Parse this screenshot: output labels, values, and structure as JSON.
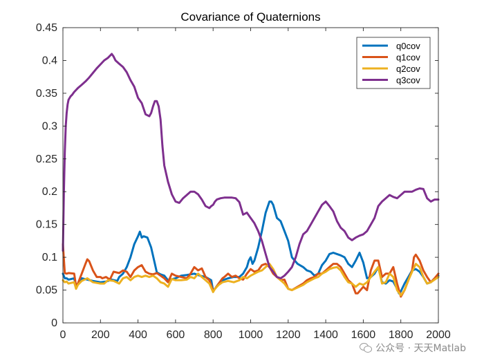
{
  "chart_data": {
    "type": "line",
    "title": "Covariance of Quaternions",
    "xlabel": "",
    "ylabel": "",
    "xlim": [
      0,
      2000
    ],
    "ylim": [
      0,
      0.45
    ],
    "xticks": [
      0,
      200,
      400,
      600,
      800,
      1000,
      1200,
      1400,
      1600,
      1800,
      2000
    ],
    "yticks": [
      0,
      0.05,
      0.1,
      0.15,
      0.2,
      0.25,
      0.3,
      0.35,
      0.4,
      0.45
    ],
    "xtick_labels": [
      "0",
      "200",
      "400",
      "600",
      "800",
      "1000",
      "1200",
      "1400",
      "1600",
      "1800",
      "2000"
    ],
    "ytick_labels": [
      "0",
      "0.05",
      "0.1",
      "0.15",
      "0.2",
      "0.25",
      "0.3",
      "0.35",
      "0.4",
      "0.45"
    ],
    "grid": false,
    "legend_position": "top-right",
    "series": [
      {
        "name": "q0cov",
        "color": "#0072BD",
        "x": [
          0,
          10,
          20,
          30,
          60,
          70,
          80,
          100,
          130,
          160,
          200,
          230,
          260,
          290,
          300,
          320,
          340,
          360,
          380,
          400,
          410,
          420,
          430,
          450,
          470,
          490,
          500,
          520,
          540,
          560,
          600,
          630,
          660,
          700,
          730,
          760,
          790,
          800,
          810,
          830,
          850,
          880,
          910,
          940,
          960,
          980,
          990,
          1000,
          1010,
          1020,
          1040,
          1060,
          1080,
          1100,
          1110,
          1120,
          1140,
          1160,
          1180,
          1200,
          1220,
          1250,
          1280,
          1300,
          1320,
          1340,
          1360,
          1380,
          1400,
          1420,
          1440,
          1460,
          1480,
          1500,
          1520,
          1540,
          1560,
          1580,
          1600,
          1620,
          1640,
          1660,
          1680,
          1700,
          1720,
          1740,
          1760,
          1780,
          1790,
          1800,
          1820,
          1840,
          1860,
          1880,
          1900,
          1920,
          1940,
          1960,
          1980,
          2000
        ],
        "y": [
          0.075,
          0.068,
          0.068,
          0.066,
          0.068,
          0.056,
          0.06,
          0.068,
          0.066,
          0.064,
          0.062,
          0.063,
          0.066,
          0.064,
          0.07,
          0.075,
          0.085,
          0.1,
          0.12,
          0.132,
          0.139,
          0.13,
          0.132,
          0.13,
          0.115,
          0.09,
          0.077,
          0.074,
          0.072,
          0.065,
          0.068,
          0.072,
          0.073,
          0.075,
          0.072,
          0.07,
          0.065,
          0.049,
          0.052,
          0.06,
          0.065,
          0.068,
          0.07,
          0.07,
          0.075,
          0.085,
          0.095,
          0.1,
          0.09,
          0.095,
          0.115,
          0.14,
          0.168,
          0.185,
          0.185,
          0.18,
          0.16,
          0.155,
          0.14,
          0.125,
          0.1,
          0.09,
          0.085,
          0.08,
          0.078,
          0.072,
          0.075,
          0.088,
          0.095,
          0.105,
          0.107,
          0.105,
          0.103,
          0.1,
          0.09,
          0.085,
          0.095,
          0.107,
          0.092,
          0.068,
          0.07,
          0.075,
          0.085,
          0.062,
          0.06,
          0.065,
          0.063,
          0.052,
          0.045,
          0.048,
          0.06,
          0.07,
          0.08,
          0.082,
          0.078,
          0.07,
          0.06,
          0.062,
          0.068,
          0.072
        ]
      },
      {
        "name": "q1cov",
        "color": "#D95319",
        "x": [
          0,
          10,
          20,
          30,
          60,
          70,
          80,
          100,
          120,
          130,
          140,
          160,
          180,
          200,
          210,
          230,
          250,
          270,
          300,
          320,
          340,
          360,
          380,
          400,
          420,
          430,
          440,
          460,
          480,
          500,
          520,
          540,
          560,
          580,
          600,
          630,
          660,
          680,
          700,
          720,
          740,
          760,
          780,
          800,
          810,
          830,
          850,
          860,
          880,
          900,
          920,
          940,
          960,
          980,
          1000,
          1020,
          1040,
          1060,
          1080,
          1100,
          1120,
          1140,
          1160,
          1180,
          1200,
          1220,
          1250,
          1280,
          1300,
          1320,
          1340,
          1360,
          1380,
          1400,
          1420,
          1440,
          1460,
          1480,
          1500,
          1520,
          1540,
          1560,
          1570,
          1600,
          1620,
          1640,
          1660,
          1680,
          1700,
          1720,
          1740,
          1760,
          1780,
          1800,
          1820,
          1840,
          1860,
          1870,
          1880,
          1900,
          1920,
          1940,
          1960,
          1980,
          2000
        ],
        "y": [
          0.12,
          0.076,
          0.075,
          0.076,
          0.075,
          0.056,
          0.06,
          0.075,
          0.09,
          0.097,
          0.094,
          0.08,
          0.07,
          0.07,
          0.068,
          0.07,
          0.066,
          0.078,
          0.076,
          0.08,
          0.078,
          0.07,
          0.08,
          0.085,
          0.088,
          0.083,
          0.078,
          0.075,
          0.074,
          0.076,
          0.072,
          0.068,
          0.062,
          0.075,
          0.072,
          0.07,
          0.068,
          0.075,
          0.085,
          0.08,
          0.083,
          0.07,
          0.065,
          0.049,
          0.052,
          0.06,
          0.068,
          0.07,
          0.075,
          0.07,
          0.072,
          0.068,
          0.066,
          0.075,
          0.082,
          0.078,
          0.08,
          0.088,
          0.09,
          0.085,
          0.075,
          0.07,
          0.065,
          0.066,
          0.052,
          0.05,
          0.055,
          0.06,
          0.065,
          0.068,
          0.07,
          0.075,
          0.075,
          0.08,
          0.085,
          0.09,
          0.09,
          0.085,
          0.075,
          0.065,
          0.06,
          0.045,
          0.045,
          0.055,
          0.05,
          0.08,
          0.095,
          0.095,
          0.07,
          0.075,
          0.075,
          0.085,
          0.06,
          0.04,
          0.05,
          0.065,
          0.08,
          0.1,
          0.104,
          0.095,
          0.08,
          0.07,
          0.062,
          0.068,
          0.075
        ]
      },
      {
        "name": "q2cov",
        "color": "#EDB120",
        "x": [
          0,
          10,
          20,
          30,
          60,
          70,
          80,
          100,
          130,
          160,
          200,
          220,
          240,
          270,
          300,
          320,
          340,
          360,
          380,
          400,
          420,
          440,
          460,
          480,
          500,
          520,
          540,
          560,
          580,
          600,
          630,
          660,
          680,
          700,
          720,
          740,
          760,
          780,
          800,
          810,
          830,
          850,
          880,
          910,
          940,
          960,
          980,
          1000,
          1020,
          1040,
          1060,
          1080,
          1100,
          1120,
          1140,
          1160,
          1180,
          1200,
          1220,
          1250,
          1280,
          1300,
          1320,
          1340,
          1360,
          1380,
          1400,
          1420,
          1440,
          1460,
          1480,
          1500,
          1520,
          1540,
          1560,
          1580,
          1600,
          1620,
          1640,
          1660,
          1680,
          1700,
          1720,
          1740,
          1760,
          1780,
          1800,
          1820,
          1840,
          1860,
          1880,
          1900,
          1920,
          1940,
          1960,
          1980,
          2000
        ],
        "y": [
          0.065,
          0.062,
          0.063,
          0.06,
          0.062,
          0.052,
          0.058,
          0.064,
          0.068,
          0.062,
          0.06,
          0.06,
          0.065,
          0.064,
          0.06,
          0.068,
          0.07,
          0.065,
          0.07,
          0.072,
          0.07,
          0.072,
          0.07,
          0.072,
          0.068,
          0.062,
          0.06,
          0.055,
          0.067,
          0.065,
          0.065,
          0.066,
          0.07,
          0.068,
          0.075,
          0.07,
          0.065,
          0.06,
          0.047,
          0.052,
          0.058,
          0.062,
          0.064,
          0.062,
          0.065,
          0.07,
          0.068,
          0.072,
          0.075,
          0.078,
          0.08,
          0.085,
          0.09,
          0.082,
          0.07,
          0.065,
          0.06,
          0.052,
          0.05,
          0.054,
          0.058,
          0.062,
          0.065,
          0.068,
          0.07,
          0.075,
          0.078,
          0.082,
          0.084,
          0.085,
          0.08,
          0.07,
          0.062,
          0.06,
          0.055,
          0.06,
          0.058,
          0.062,
          0.07,
          0.078,
          0.085,
          0.06,
          0.062,
          0.075,
          0.07,
          0.05,
          0.042,
          0.05,
          0.065,
          0.078,
          0.09,
          0.085,
          0.07,
          0.06,
          0.062,
          0.066,
          0.07
        ]
      },
      {
        "name": "q3cov",
        "color": "#7E2F8E",
        "x": [
          0,
          5,
          10,
          15,
          20,
          25,
          30,
          40,
          50,
          60,
          80,
          100,
          120,
          140,
          160,
          180,
          200,
          220,
          240,
          250,
          260,
          270,
          280,
          300,
          320,
          340,
          360,
          380,
          400,
          420,
          440,
          460,
          470,
          480,
          490,
          500,
          510,
          520,
          530,
          540,
          560,
          580,
          600,
          620,
          640,
          660,
          680,
          700,
          720,
          740,
          760,
          780,
          790,
          800,
          810,
          820,
          840,
          860,
          880,
          900,
          920,
          940,
          960,
          980,
          1000,
          1020,
          1040,
          1060,
          1080,
          1100,
          1120,
          1140,
          1160,
          1180,
          1200,
          1220,
          1240,
          1260,
          1280,
          1300,
          1320,
          1340,
          1360,
          1380,
          1400,
          1420,
          1440,
          1460,
          1480,
          1500,
          1520,
          1540,
          1560,
          1580,
          1600,
          1620,
          1640,
          1660,
          1680,
          1700,
          1720,
          1740,
          1760,
          1780,
          1800,
          1820,
          1840,
          1860,
          1880,
          1900,
          1920,
          1940,
          1960,
          1980,
          2000
        ],
        "y": [
          0.11,
          0.2,
          0.26,
          0.3,
          0.32,
          0.333,
          0.34,
          0.345,
          0.348,
          0.352,
          0.358,
          0.363,
          0.368,
          0.374,
          0.381,
          0.388,
          0.394,
          0.4,
          0.404,
          0.407,
          0.41,
          0.406,
          0.4,
          0.395,
          0.39,
          0.382,
          0.37,
          0.36,
          0.343,
          0.335,
          0.318,
          0.315,
          0.32,
          0.33,
          0.338,
          0.338,
          0.33,
          0.31,
          0.27,
          0.24,
          0.215,
          0.196,
          0.185,
          0.183,
          0.19,
          0.195,
          0.2,
          0.2,
          0.196,
          0.188,
          0.178,
          0.175,
          0.178,
          0.18,
          0.185,
          0.188,
          0.19,
          0.191,
          0.191,
          0.191,
          0.19,
          0.184,
          0.165,
          0.168,
          0.16,
          0.152,
          0.14,
          0.125,
          0.105,
          0.085,
          0.078,
          0.07,
          0.068,
          0.072,
          0.078,
          0.085,
          0.1,
          0.12,
          0.135,
          0.14,
          0.15,
          0.16,
          0.17,
          0.18,
          0.185,
          0.178,
          0.17,
          0.155,
          0.145,
          0.14,
          0.13,
          0.126,
          0.13,
          0.133,
          0.135,
          0.14,
          0.15,
          0.16,
          0.178,
          0.185,
          0.19,
          0.195,
          0.192,
          0.19,
          0.195,
          0.2,
          0.2,
          0.2,
          0.203,
          0.205,
          0.204,
          0.19,
          0.185,
          0.188,
          0.188
        ]
      }
    ]
  },
  "watermark": {
    "text": "公众号 · 天天Matlab",
    "icon": "wechat-icon"
  }
}
